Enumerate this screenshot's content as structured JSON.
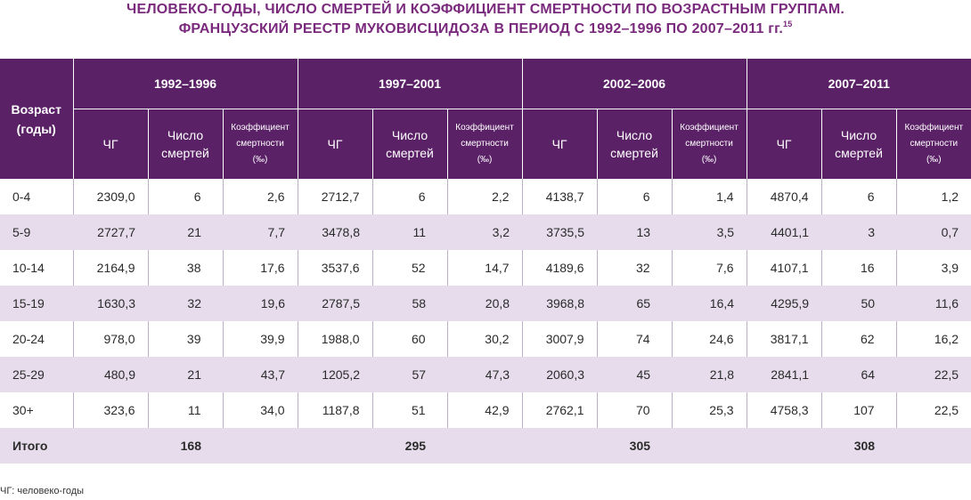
{
  "title": {
    "line1": "ЧЕЛОВЕКО-ГОДЫ, ЧИСЛО СМЕРТЕЙ И КОЭФФИЦИЕНТ СМЕРТНОСТИ ПО ВОЗРАСТНЫМ ГРУППАМ.",
    "line2": "ФРАНЦУЗСКИЙ РЕЕСТР МУКОВИСЦИДОЗА В ПЕРИОД С 1992–1996 ПО 2007–2011 гг.",
    "ref": "15"
  },
  "table": {
    "age_header": [
      "Возраст",
      "(годы)"
    ],
    "periods": [
      "1992–1996",
      "1997–2001",
      "2002–2006",
      "2007–2011"
    ],
    "sub_headers": {
      "py": "ЧГ",
      "deaths": [
        "Число",
        "смертей"
      ],
      "rate": [
        "Коэффициент",
        "смертности",
        "(‰)"
      ]
    },
    "rows": [
      {
        "age": "0-4",
        "cells": [
          "2309,0",
          "6",
          "2,6",
          "2712,7",
          "6",
          "2,2",
          "4138,7",
          "6",
          "1,4",
          "4870,4",
          "6",
          "1,2"
        ]
      },
      {
        "age": "5-9",
        "cells": [
          "2727,7",
          "21",
          "7,7",
          "3478,8",
          "11",
          "3,2",
          "3735,5",
          "13",
          "3,5",
          "4401,1",
          "3",
          "0,7"
        ]
      },
      {
        "age": "10-14",
        "cells": [
          "2164,9",
          "38",
          "17,6",
          "3537,6",
          "52",
          "14,7",
          "4189,6",
          "32",
          "7,6",
          "4107,1",
          "16",
          "3,9"
        ]
      },
      {
        "age": "15-19",
        "cells": [
          "1630,3",
          "32",
          "19,6",
          "2787,5",
          "58",
          "20,8",
          "3968,8",
          "65",
          "16,4",
          "4295,9",
          "50",
          "11,6"
        ]
      },
      {
        "age": "20-24",
        "cells": [
          "978,0",
          "39",
          "39,9",
          "1988,0",
          "60",
          "30,2",
          "3007,9",
          "74",
          "24,6",
          "3817,1",
          "62",
          "16,2"
        ]
      },
      {
        "age": "25-29",
        "cells": [
          "480,9",
          "21",
          "43,7",
          "1205,2",
          "57",
          "47,3",
          "2060,3",
          "45",
          "21,8",
          "2841,1",
          "64",
          "22,5"
        ]
      },
      {
        "age": "30+",
        "cells": [
          "323,6",
          "11",
          "34,0",
          "1187,8",
          "51",
          "42,9",
          "2762,1",
          "70",
          "25,3",
          "4758,3",
          "107",
          "22,5"
        ]
      }
    ],
    "total": {
      "label": "Итого",
      "values": [
        "168",
        "295",
        "305",
        "308"
      ]
    }
  },
  "footnote": "ЧГ: человеко-годы",
  "colors": {
    "header_bg": "#5b2167",
    "title": "#7a2a7c",
    "stripe": "#e6dcec"
  }
}
